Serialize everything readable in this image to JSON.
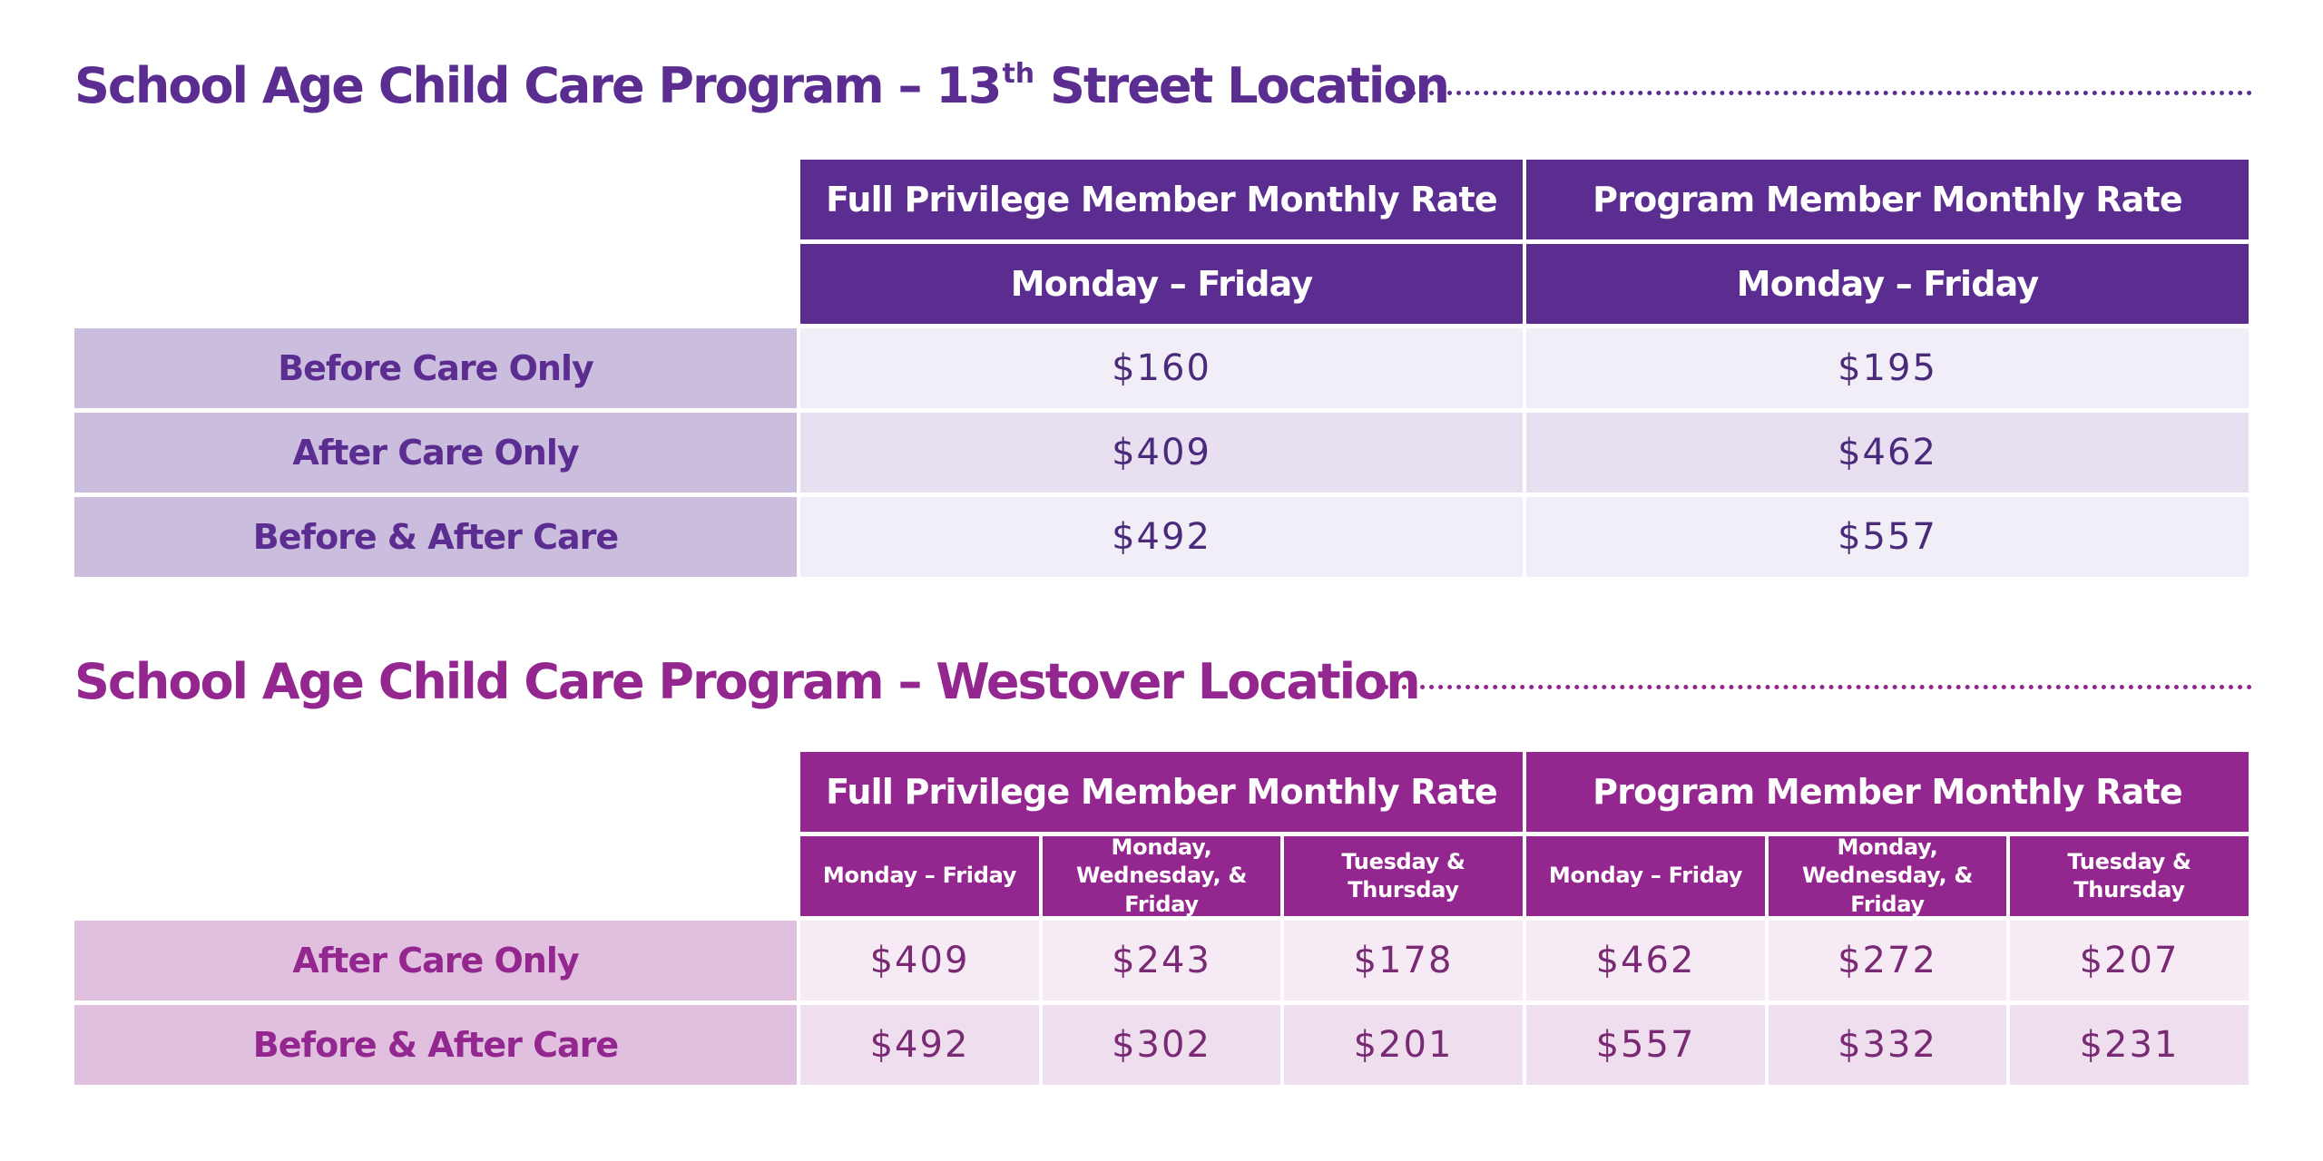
{
  "sections": [
    {
      "title_before": "School Age Child Care Program – 13",
      "title_sup": "th",
      "title_after": " Street Location",
      "header_groups": [
        "Full Privilege Member Monthly Rate",
        "Program Member Monthly Rate"
      ],
      "sub_headers": [
        "Monday – Friday",
        "Monday – Friday"
      ],
      "rows": [
        {
          "label": "Before Care Only",
          "values": [
            "$160",
            "$195"
          ]
        },
        {
          "label": "After Care Only",
          "values": [
            "$409",
            "$462"
          ]
        },
        {
          "label": "Before & After Care",
          "values": [
            "$492",
            "$557"
          ]
        }
      ]
    },
    {
      "title": "School Age Child Care Program – Westover Location",
      "header_groups": [
        "Full Privilege Member Monthly Rate",
        "Program Member Monthly Rate"
      ],
      "sub_headers": [
        "Monday – Friday",
        "Monday, Wednesday, & Friday",
        "Tuesday & Thursday",
        "Monday – Friday",
        "Monday, Wednesday, & Friday",
        "Tuesday & Thursday"
      ],
      "rows": [
        {
          "label": "After Care Only",
          "values": [
            "$409",
            "$243",
            "$178",
            "$462",
            "$272",
            "$207"
          ]
        },
        {
          "label": "Before & After Care",
          "values": [
            "$492",
            "$302",
            "$201",
            "$557",
            "$332",
            "$231"
          ]
        }
      ]
    }
  ],
  "colors": {
    "section1_primary": "#5c2d91",
    "section1_label_bg": "#cbbddd",
    "section2_primary": "#93278f",
    "section2_label_bg": "#e1bfdf"
  }
}
